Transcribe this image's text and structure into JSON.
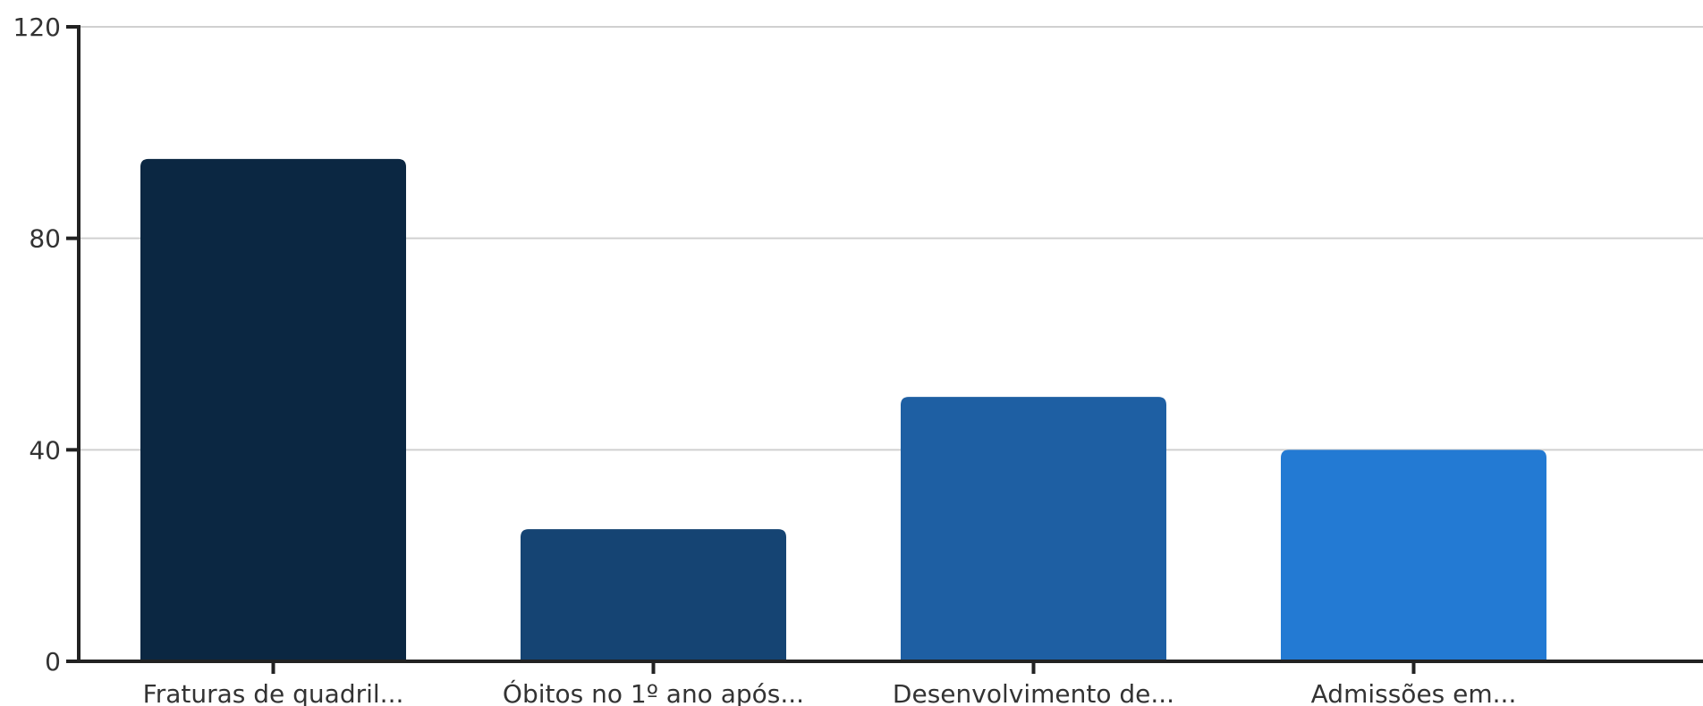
{
  "chart_data": {
    "type": "bar",
    "title": "",
    "xlabel": "",
    "ylabel": "",
    "categories": [
      "Fraturas de quadril...",
      "Óbitos no 1º ano após...",
      "Desenvolvimento de...",
      "Admissões em..."
    ],
    "values": [
      95,
      25,
      50,
      40
    ],
    "bar_colors": [
      "#0b2742",
      "#154473",
      "#1e5fa3",
      "#237ad3"
    ],
    "ylim": [
      0,
      120
    ],
    "yticks": [
      0,
      40,
      80,
      120
    ],
    "ytick_labels": [
      "0",
      "40",
      "80",
      "120"
    ],
    "grid": true,
    "legend": "none",
    "colors": {
      "axis": "#222222",
      "grid": "#d0d0d0",
      "text": "#333333"
    }
  }
}
